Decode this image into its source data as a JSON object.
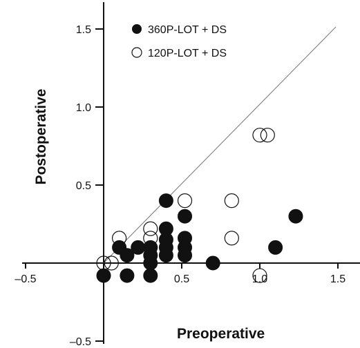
{
  "chart_data": {
    "type": "scatter",
    "xlabel": "Preoperative",
    "ylabel": "Postoperative",
    "xlim": [
      -0.5,
      1.65
    ],
    "ylim": [
      -0.5,
      1.65
    ],
    "x_ticks": [
      -0.5,
      0.5,
      1.0,
      1.5
    ],
    "x_tick_labels": [
      "–0.5",
      "0.5",
      "1.0",
      "1.5"
    ],
    "y_ticks": [
      -0.5,
      0.5,
      1.0,
      1.5
    ],
    "y_tick_labels": [
      "–0.5",
      "0.5",
      "1.0",
      "1.5"
    ],
    "reference_line": {
      "x": [
        0,
        1.5
      ],
      "y": [
        0,
        1.5
      ]
    },
    "legend_placement": "top-left",
    "grid": false,
    "series": [
      {
        "name": "360P-LOT + DS",
        "marker": "filled-circle",
        "color": "#111111",
        "points": [
          {
            "x": 0.4,
            "y": 0.4
          },
          {
            "x": 1.23,
            "y": 0.3
          },
          {
            "x": 0.52,
            "y": 0.3
          },
          {
            "x": 0.4,
            "y": 0.22
          },
          {
            "x": 0.4,
            "y": 0.15
          },
          {
            "x": 0.52,
            "y": 0.16
          },
          {
            "x": 0.3,
            "y": 0.1
          },
          {
            "x": 0.4,
            "y": 0.1
          },
          {
            "x": 0.52,
            "y": 0.1
          },
          {
            "x": 0.1,
            "y": 0.1
          },
          {
            "x": 0.22,
            "y": 0.1
          },
          {
            "x": 1.1,
            "y": 0.1
          },
          {
            "x": 0.3,
            "y": 0.05
          },
          {
            "x": 0.4,
            "y": 0.05
          },
          {
            "x": 0.52,
            "y": 0.05
          },
          {
            "x": 0.15,
            "y": 0.05
          },
          {
            "x": 0.3,
            "y": 0.0
          },
          {
            "x": 0.7,
            "y": 0.0
          },
          {
            "x": 0.0,
            "y": -0.08
          },
          {
            "x": 0.15,
            "y": -0.08
          },
          {
            "x": 0.3,
            "y": -0.08
          }
        ]
      },
      {
        "name": "120P-LOT + DS",
        "marker": "open-circle",
        "color": "#111111",
        "points": [
          {
            "x": 1.0,
            "y": 0.82
          },
          {
            "x": 1.05,
            "y": 0.82
          },
          {
            "x": 0.52,
            "y": 0.4
          },
          {
            "x": 0.82,
            "y": 0.4
          },
          {
            "x": 0.3,
            "y": 0.22
          },
          {
            "x": 0.1,
            "y": 0.16
          },
          {
            "x": 0.3,
            "y": 0.16
          },
          {
            "x": 0.82,
            "y": 0.16
          },
          {
            "x": 0.0,
            "y": 0.0
          },
          {
            "x": 0.05,
            "y": 0.0
          },
          {
            "x": 1.0,
            "y": -0.08
          }
        ]
      }
    ]
  }
}
